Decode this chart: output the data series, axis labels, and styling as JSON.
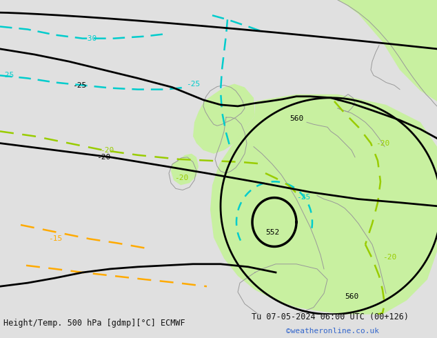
{
  "title_left": "Height/Temp. 500 hPa [gdmp][°C] ECMWF",
  "title_right": "Tu 07-05-2024 06:00 UTC (00+126)",
  "watermark": "©weatheronline.co.uk",
  "bg_color": "#e0e0e0",
  "green_fill_color": "#c8f0a0",
  "map_border_color": "#999999",
  "black_contour_color": "#000000",
  "cyan_contour_color": "#00cccc",
  "green_contour_color": "#99cc00",
  "orange_contour_color": "#ffaa00",
  "font_size_label": 8,
  "font_size_footer": 8.5,
  "font_size_watermark": 8
}
